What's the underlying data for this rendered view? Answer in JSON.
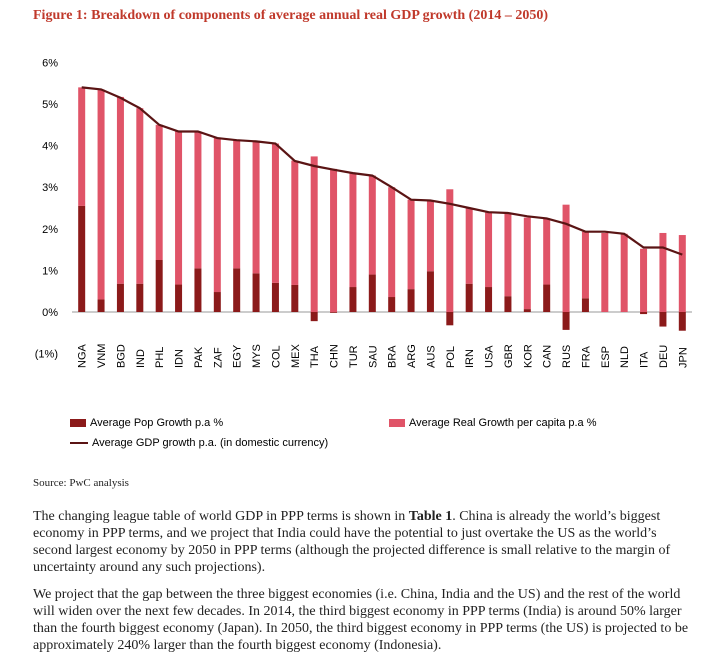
{
  "figure_title": "Figure 1: Breakdown of components of average annual real GDP growth (2014 – 2050)",
  "source": "Source: PwC analysis",
  "legend": {
    "pop": "Average Pop Growth p.a %",
    "capita": "Average Real Growth per capita p.a %",
    "gdp": "Average GDP growth p.a. (in domestic currency)"
  },
  "colors": {
    "pop": "#8b1a1a",
    "capita": "#e05468",
    "gdp": "#5a1414"
  },
  "paragraph1": {
    "before": "The changing league table of world GDP in PPP terms is shown in ",
    "bold": "Table 1",
    "after": ". China is already the world’s biggest economy in PPP terms, and we project that India could have the potential to just overtake the US as the world’s second largest economy by 2050 in PPP terms (although the projected difference is small relative to the margin of uncertainty around any such projections)."
  },
  "paragraph2": "We project that the gap between the three biggest economies (i.e. China, India and the US) and the rest of the world will widen over the next few decades. In 2014, the third biggest economy in PPP terms (India) is around 50% larger than the fourth biggest economy (Japan). In 2050, the third biggest economy in PPP terms (the US) is projected to be approximately 240% larger than the fourth biggest economy (Indonesia).",
  "chart_data": {
    "type": "bar",
    "categories": [
      "NGA",
      "VNM",
      "BGD",
      "IND",
      "PHL",
      "IDN",
      "PAK",
      "ZAF",
      "EGY",
      "MYS",
      "COL",
      "MEX",
      "THA",
      "CHN",
      "TUR",
      "SAU",
      "BRA",
      "ARG",
      "AUS",
      "POL",
      "IRN",
      "USA",
      "GBR",
      "KOR",
      "CAN",
      "RUS",
      "FRA",
      "ESP",
      "NLD",
      "ITA",
      "DEU",
      "JPN"
    ],
    "series": [
      {
        "name": "Average Pop Growth p.a %",
        "values": [
          2.55,
          0.3,
          0.68,
          0.68,
          1.25,
          0.66,
          1.05,
          0.48,
          1.05,
          0.93,
          0.7,
          0.65,
          -0.22,
          -0.02,
          0.6,
          0.9,
          0.36,
          0.55,
          0.98,
          -0.32,
          0.68,
          0.6,
          0.38,
          0.07,
          0.66,
          -0.43,
          0.33,
          0.0,
          0.0,
          -0.05,
          -0.35,
          -0.45
        ]
      },
      {
        "name": "Average Real Growth per capita p.a %",
        "values": [
          2.85,
          5.05,
          4.49,
          4.22,
          3.25,
          3.68,
          3.29,
          3.71,
          3.07,
          3.19,
          3.35,
          2.99,
          3.74,
          3.44,
          2.74,
          2.38,
          2.64,
          2.15,
          1.7,
          2.95,
          1.82,
          1.79,
          2.0,
          2.2,
          1.59,
          2.58,
          1.6,
          1.9,
          1.88,
          1.52,
          1.9,
          1.85
        ]
      },
      {
        "name": "Average GDP growth p.a. (in domestic currency)",
        "type": "line",
        "values": [
          5.4,
          5.35,
          5.15,
          4.9,
          4.5,
          4.34,
          4.34,
          4.18,
          4.13,
          4.1,
          4.05,
          3.63,
          3.51,
          3.42,
          3.34,
          3.28,
          3.0,
          2.7,
          2.68,
          2.6,
          2.5,
          2.4,
          2.38,
          2.3,
          2.25,
          2.12,
          1.93,
          1.93,
          1.88,
          1.55,
          1.55,
          1.38
        ]
      }
    ],
    "yticks": [
      "6%",
      "5%",
      "4%",
      "3%",
      "2%",
      "1%",
      "0%",
      "(1%)"
    ],
    "ylim": [
      -1,
      6
    ]
  }
}
